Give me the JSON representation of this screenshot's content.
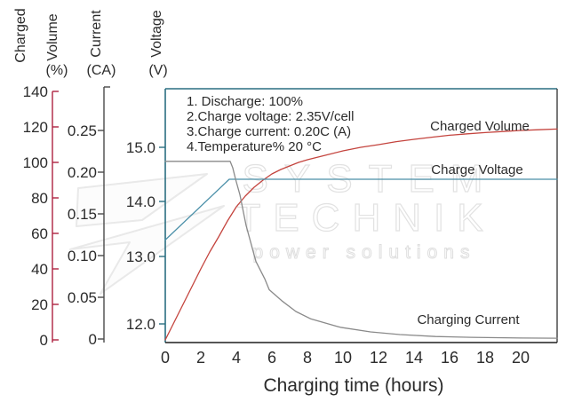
{
  "watermark": {
    "line1": "SYSTEM",
    "line2": "TECHNIK",
    "line3": "power solutions"
  },
  "annotation": {
    "lines": [
      "1. Discharge: 100%",
      "2.Charge voltage: 2.35V/cell",
      "3.Charge current: 0.20C (A)",
      "4.Temperature% 20 °C"
    ]
  },
  "curve_labels": {
    "charged_volume": "Charged Volume",
    "charge_voltage": "Charge Voltage",
    "charging_current": "Charging Current"
  },
  "axes": {
    "charged_volume": {
      "word1": "Charged",
      "word2": "Volume",
      "unit": "(%)"
    },
    "current": {
      "word1": "Current",
      "unit": "(CA)"
    },
    "voltage": {
      "word1": "Voltage",
      "unit": "(V)"
    },
    "x": {
      "label": "Charging time (hours)"
    }
  },
  "chart_data": {
    "type": "line",
    "title": "",
    "xlabel": "Charging time (hours)",
    "x_axis": {
      "ticks": [
        0,
        2,
        4,
        6,
        8,
        10,
        12,
        14,
        16,
        18,
        20
      ],
      "range": [
        0,
        22
      ]
    },
    "y_axes": [
      {
        "id": "percent",
        "label": "Charged Volume (%)",
        "ticks": [
          0,
          20,
          40,
          60,
          80,
          100,
          120,
          140
        ],
        "tick_labels": [
          "0",
          "20",
          "40",
          "60",
          "80",
          "100",
          "120",
          "140"
        ],
        "range": [
          0,
          140
        ],
        "color": "#ad2140"
      },
      {
        "id": "current_ca",
        "label": "Current (CA)",
        "ticks": [
          0,
          0.05,
          0.1,
          0.15,
          0.2,
          0.25
        ],
        "tick_labels": [
          "0",
          "0.05",
          "0.10",
          "0.15",
          "0.20",
          "0.25"
        ],
        "range": [
          0,
          0.25
        ],
        "color": "#4a4a4a"
      },
      {
        "id": "voltage",
        "label": "Voltage (V)",
        "ticks": [
          12,
          13,
          14,
          15
        ],
        "tick_labels": [
          "12.0",
          "13.0",
          "14.0",
          "15.0"
        ],
        "range": [
          11.7,
          15.6
        ],
        "color": "#2a6e80"
      }
    ],
    "series": [
      {
        "name": "Charged Volume",
        "axis": "percent",
        "color": "#c4443e",
        "points": [
          [
            0,
            0
          ],
          [
            0.5,
            10
          ],
          [
            1,
            20
          ],
          [
            1.5,
            30
          ],
          [
            2,
            40
          ],
          [
            2.5,
            49.5
          ],
          [
            3,
            58
          ],
          [
            3.5,
            67
          ],
          [
            4,
            75
          ],
          [
            4.5,
            81
          ],
          [
            5,
            86
          ],
          [
            5.5,
            90
          ],
          [
            6,
            93.5
          ],
          [
            6.5,
            96
          ],
          [
            7,
            98
          ],
          [
            7.5,
            100
          ],
          [
            8,
            101.5
          ],
          [
            9,
            104
          ],
          [
            10,
            106.5
          ],
          [
            11,
            108.5
          ],
          [
            12,
            110
          ],
          [
            13,
            111.7
          ],
          [
            14,
            113
          ],
          [
            15,
            114.2
          ],
          [
            16,
            115.3
          ],
          [
            17,
            116.1
          ],
          [
            18,
            116.8
          ],
          [
            19,
            117.4
          ],
          [
            20,
            118
          ],
          [
            21,
            118.4
          ],
          [
            22.05,
            118.8
          ]
        ]
      },
      {
        "name": "Charge Voltage",
        "axis": "voltage",
        "color": "#4a8fa8",
        "points": [
          [
            0,
            13.3
          ],
          [
            3.6,
            14.41
          ],
          [
            22.05,
            14.41
          ]
        ]
      },
      {
        "name": "Charging Current",
        "axis": "current_ca",
        "color": "#8a8a8a",
        "points": [
          [
            0,
            0.213
          ],
          [
            3.65,
            0.213
          ],
          [
            3.8,
            0.205
          ],
          [
            3.95,
            0.192
          ],
          [
            4.2,
            0.173
          ],
          [
            4.55,
            0.136
          ],
          [
            5.1,
            0.093
          ],
          [
            5.6,
            0.072
          ],
          [
            5.85,
            0.059
          ],
          [
            6.55,
            0.046
          ],
          [
            7.35,
            0.033
          ],
          [
            8.2,
            0.024
          ],
          [
            9.85,
            0.014
          ],
          [
            11.55,
            0.0085
          ],
          [
            13.2,
            0.0053
          ],
          [
            15.2,
            0.003
          ],
          [
            17.2,
            0.002
          ],
          [
            20,
            0.0012
          ],
          [
            22.05,
            0.001
          ]
        ]
      }
    ],
    "conditions_note": "1. Discharge: 100% / 2.Charge voltage: 2.35V/cell / 3.Charge current: 0.20C (A) / 4.Temperature% 20 °C"
  }
}
